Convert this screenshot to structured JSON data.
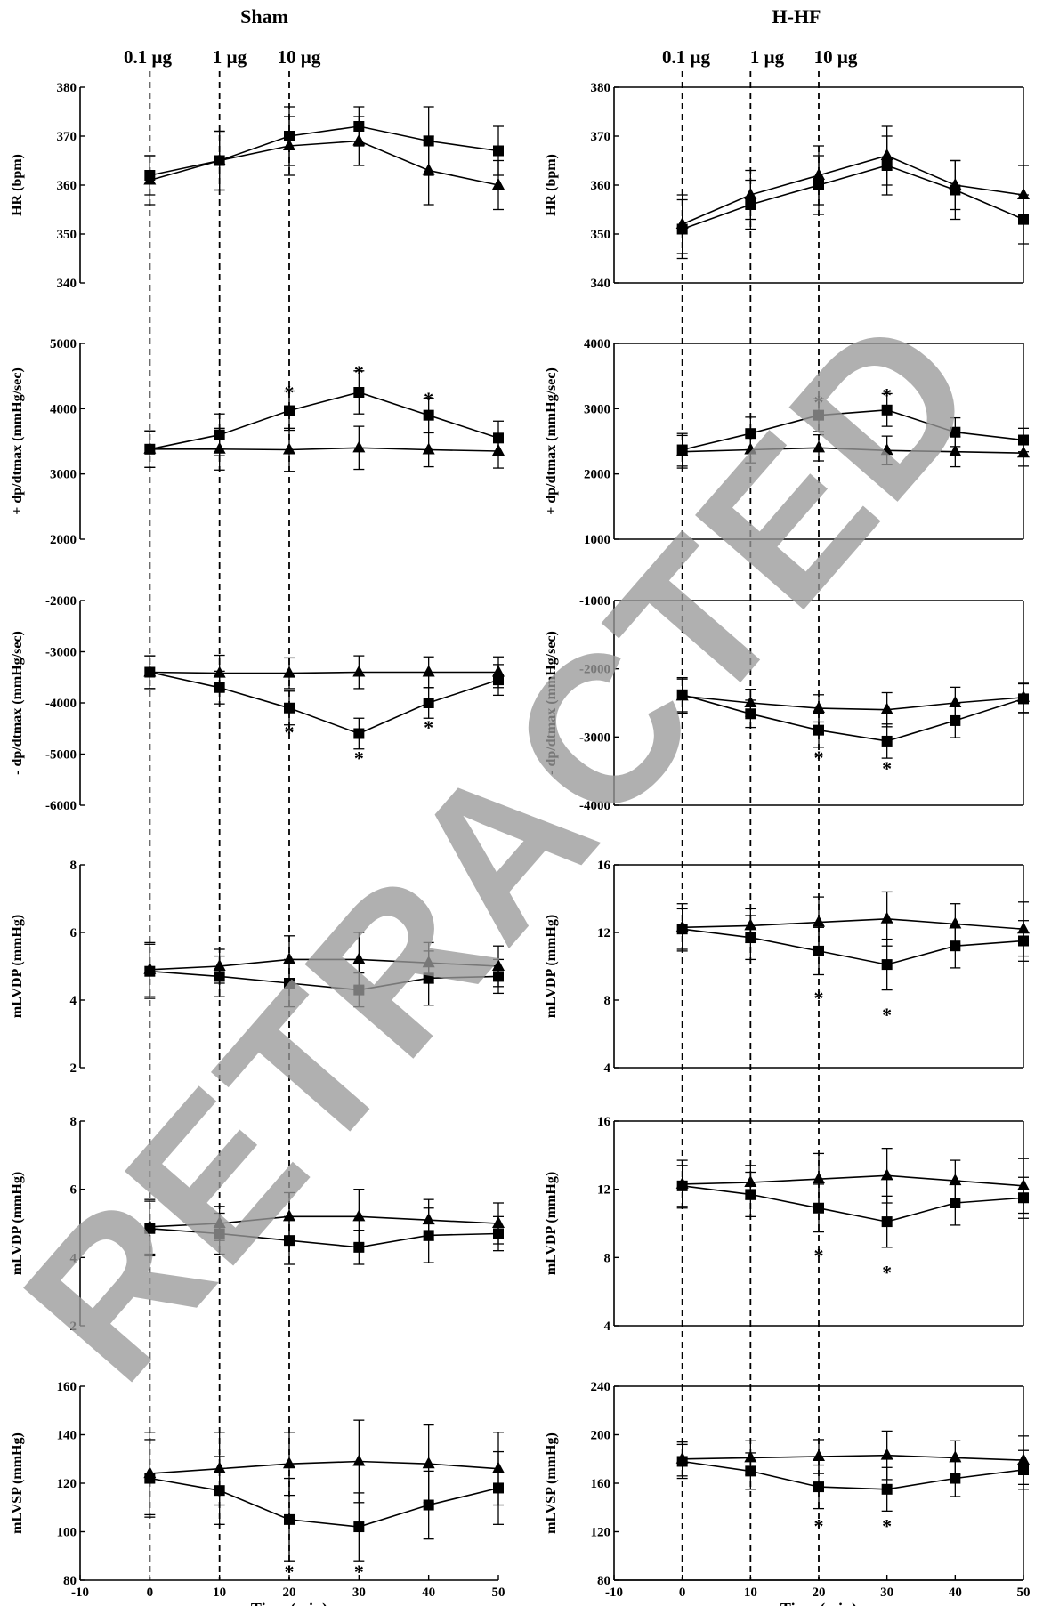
{
  "watermark": "RETRACTED",
  "columns": [
    {
      "title": "Sham",
      "doses": [
        "0.1 μg",
        "1 μg",
        "10 μg"
      ],
      "dose_times": [
        0,
        10,
        20
      ]
    },
    {
      "title": "H-HF",
      "doses": [
        "0.1 μg",
        "1 μg",
        "10 μg"
      ],
      "dose_times": [
        0,
        10,
        20
      ]
    }
  ],
  "xaxis": {
    "label": "Time (min)",
    "range": [
      -10,
      50
    ],
    "ticks": [
      -10,
      0,
      10,
      20,
      30,
      40,
      50
    ]
  },
  "colors": {
    "lines": "#000000",
    "watermark": "#9a9a9a"
  },
  "chart_data": [
    {
      "type": "line",
      "column": 0,
      "row": 0,
      "ylabel": "HR (bpm)",
      "ylim": [
        340,
        380
      ],
      "yticks": [
        340,
        350,
        360,
        370,
        380
      ],
      "x": [
        0,
        10,
        20,
        30,
        40,
        50
      ],
      "series": [
        {
          "marker": "square",
          "values": [
            362,
            365,
            370,
            372,
            369,
            367
          ],
          "err": [
            4,
            6,
            6,
            4,
            7,
            5
          ]
        },
        {
          "marker": "triangle",
          "values": [
            361,
            365,
            368,
            369,
            363,
            360
          ],
          "err": [
            5,
            6,
            6,
            5,
            7,
            5
          ]
        }
      ],
      "stars": [],
      "frame": "open"
    },
    {
      "type": "line",
      "column": 0,
      "row": 1,
      "ylabel": "+ dp/dtmax (mmHg/sec)",
      "ylim": [
        2000,
        5000
      ],
      "yticks": [
        2000,
        3000,
        4000,
        5000
      ],
      "x": [
        0,
        10,
        20,
        30,
        40,
        50
      ],
      "series": [
        {
          "marker": "square",
          "values": [
            3380,
            3600,
            3970,
            4250,
            3900,
            3550
          ],
          "err": [
            280,
            320,
            300,
            330,
            260,
            260
          ]
        },
        {
          "marker": "triangle",
          "values": [
            3380,
            3380,
            3370,
            3400,
            3370,
            3350
          ],
          "err": [
            280,
            320,
            330,
            330,
            260,
            260
          ]
        }
      ],
      "stars": [
        {
          "x": 20,
          "y": 4270
        },
        {
          "x": 30,
          "y": 4580
        },
        {
          "x": 40,
          "y": 4170
        }
      ],
      "frame": "open"
    },
    {
      "type": "line",
      "column": 0,
      "row": 2,
      "ylabel": "- dp/dtmax (mmHg/sec)",
      "ylim": [
        -6000,
        -2000
      ],
      "yticks": [
        -6000,
        -5000,
        -4000,
        -3000,
        -2000
      ],
      "x": [
        0,
        10,
        20,
        30,
        40,
        50
      ],
      "series": [
        {
          "marker": "square",
          "values": [
            -3400,
            -3700,
            -4100,
            -4600,
            -4000,
            -3550
          ],
          "err": [
            320,
            320,
            330,
            300,
            300,
            300
          ]
        },
        {
          "marker": "triangle",
          "values": [
            -3400,
            -3420,
            -3420,
            -3400,
            -3400,
            -3400
          ],
          "err": [
            320,
            350,
            300,
            320,
            300,
            300
          ]
        }
      ],
      "stars": [
        {
          "x": 20,
          "y": -4550
        },
        {
          "x": 30,
          "y": -5050
        },
        {
          "x": 40,
          "y": -4450
        }
      ],
      "frame": "open"
    },
    {
      "type": "line",
      "column": 0,
      "row": 3,
      "ylabel": "mLVDP (mmHg)",
      "ylim": [
        2,
        8
      ],
      "yticks": [
        2,
        4,
        6,
        8
      ],
      "x": [
        0,
        10,
        20,
        30,
        40,
        50
      ],
      "series": [
        {
          "marker": "square",
          "values": [
            4.85,
            4.7,
            4.5,
            4.3,
            4.65,
            4.7
          ],
          "err": [
            0.8,
            0.6,
            0.7,
            0.5,
            0.8,
            0.5
          ]
        },
        {
          "marker": "triangle",
          "values": [
            4.9,
            5.0,
            5.2,
            5.2,
            5.1,
            5.0
          ],
          "err": [
            0.8,
            0.5,
            0.7,
            0.8,
            0.6,
            0.6
          ]
        }
      ],
      "stars": [],
      "frame": "open"
    },
    {
      "type": "line",
      "column": 0,
      "row": 4,
      "ylabel": "mLVDP (mmHg)",
      "ylim": [
        2,
        8
      ],
      "yticks": [
        2,
        4,
        6,
        8
      ],
      "x": [
        0,
        10,
        20,
        30,
        40,
        50
      ],
      "series": [
        {
          "marker": "square",
          "values": [
            4.85,
            4.7,
            4.5,
            4.3,
            4.65,
            4.7
          ],
          "err": [
            0.8,
            0.6,
            0.7,
            0.5,
            0.8,
            0.5
          ]
        },
        {
          "marker": "triangle",
          "values": [
            4.9,
            5.0,
            5.2,
            5.2,
            5.1,
            5.0
          ],
          "err": [
            0.8,
            0.5,
            0.7,
            0.8,
            0.6,
            0.6
          ]
        }
      ],
      "stars": [],
      "frame": "open"
    },
    {
      "type": "line",
      "column": 0,
      "row": 5,
      "ylabel": "mLVSP (mmHg)",
      "ylim": [
        80,
        160
      ],
      "yticks": [
        80,
        100,
        120,
        140,
        160
      ],
      "x": [
        0,
        10,
        20,
        30,
        40,
        50
      ],
      "series": [
        {
          "marker": "square",
          "values": [
            122,
            117,
            105,
            102,
            111,
            118
          ],
          "err": [
            16,
            14,
            17,
            14,
            14,
            15
          ]
        },
        {
          "marker": "triangle",
          "values": [
            124,
            126,
            128,
            129,
            128,
            126
          ],
          "err": [
            17,
            15,
            13,
            17,
            16,
            15
          ]
        }
      ],
      "stars": [
        {
          "x": 20,
          "y": 84
        },
        {
          "x": 30,
          "y": 84
        }
      ],
      "frame": "open"
    },
    {
      "type": "line",
      "column": 1,
      "row": 0,
      "ylabel": "HR (bpm)",
      "ylim": [
        340,
        380
      ],
      "yticks": [
        340,
        350,
        360,
        370,
        380
      ],
      "x": [
        0,
        10,
        20,
        30,
        40,
        50
      ],
      "series": [
        {
          "marker": "square",
          "values": [
            351,
            356,
            360,
            364,
            359,
            353
          ],
          "err": [
            6,
            5,
            6,
            6,
            6,
            5
          ]
        },
        {
          "marker": "triangle",
          "values": [
            352,
            358,
            362,
            366,
            360,
            358
          ],
          "err": [
            6,
            5,
            6,
            6,
            5,
            6
          ]
        }
      ],
      "stars": [],
      "frame": "box"
    },
    {
      "type": "line",
      "column": 1,
      "row": 1,
      "ylabel": "+ dp/dtmax (mmHg/sec)",
      "ylim": [
        1000,
        4000
      ],
      "yticks": [
        1000,
        2000,
        3000,
        4000
      ],
      "x": [
        0,
        10,
        20,
        30,
        40,
        50
      ],
      "series": [
        {
          "marker": "square",
          "values": [
            2370,
            2620,
            2900,
            2980,
            2640,
            2520
          ],
          "err": [
            250,
            250,
            250,
            250,
            220,
            180
          ]
        },
        {
          "marker": "triangle",
          "values": [
            2340,
            2370,
            2400,
            2360,
            2340,
            2320
          ],
          "err": [
            250,
            200,
            200,
            220,
            230,
            200
          ]
        }
      ],
      "stars": [
        {
          "x": 20,
          "y": 3120
        },
        {
          "x": 30,
          "y": 3230
        }
      ],
      "frame": "box"
    },
    {
      "type": "line",
      "column": 1,
      "row": 2,
      "ylabel": "- dp/dtmax (mmHg/sec)",
      "ylim": [
        -4000,
        -1000
      ],
      "yticks": [
        -4000,
        -3000,
        -2000,
        -1000
      ],
      "x": [
        0,
        10,
        20,
        30,
        40,
        50
      ],
      "series": [
        {
          "marker": "square",
          "values": [
            -2380,
            -2660,
            -2900,
            -3060,
            -2760,
            -2440
          ],
          "err": [
            250,
            200,
            250,
            250,
            250,
            220
          ]
        },
        {
          "marker": "triangle",
          "values": [
            -2400,
            -2500,
            -2580,
            -2600,
            -2500,
            -2420
          ],
          "err": [
            250,
            200,
            200,
            250,
            230,
            220
          ]
        }
      ],
      "stars": [
        {
          "x": 20,
          "y": -3280
        },
        {
          "x": 30,
          "y": -3440
        }
      ],
      "frame": "box"
    },
    {
      "type": "line",
      "column": 1,
      "row": 3,
      "ylabel": "mLVDP (mmHg)",
      "ylim": [
        4,
        16
      ],
      "yticks": [
        4,
        8,
        12,
        16
      ],
      "x": [
        0,
        10,
        20,
        30,
        40,
        50
      ],
      "series": [
        {
          "marker": "square",
          "values": [
            12.2,
            11.7,
            10.9,
            10.1,
            11.2,
            11.5
          ],
          "err": [
            1.2,
            1.3,
            1.4,
            1.5,
            1.3,
            1.2
          ]
        },
        {
          "marker": "triangle",
          "values": [
            12.3,
            12.4,
            12.6,
            12.8,
            12.5,
            12.2
          ],
          "err": [
            1.4,
            1.0,
            1.5,
            1.6,
            1.2,
            1.6
          ]
        }
      ],
      "stars": [
        {
          "x": 20,
          "y": 8.2
        },
        {
          "x": 30,
          "y": 7.2
        }
      ],
      "frame": "box"
    },
    {
      "type": "line",
      "column": 1,
      "row": 4,
      "ylabel": "mLVDP (mmHg)",
      "ylim": [
        4,
        16
      ],
      "yticks": [
        4,
        8,
        12,
        16
      ],
      "x": [
        0,
        10,
        20,
        30,
        40,
        50
      ],
      "series": [
        {
          "marker": "square",
          "values": [
            12.2,
            11.7,
            10.9,
            10.1,
            11.2,
            11.5
          ],
          "err": [
            1.2,
            1.3,
            1.4,
            1.5,
            1.3,
            1.2
          ]
        },
        {
          "marker": "triangle",
          "values": [
            12.3,
            12.4,
            12.6,
            12.8,
            12.5,
            12.2
          ],
          "err": [
            1.4,
            1.0,
            1.5,
            1.6,
            1.2,
            1.6
          ]
        }
      ],
      "stars": [
        {
          "x": 20,
          "y": 8.2
        },
        {
          "x": 30,
          "y": 7.2
        }
      ],
      "frame": "box"
    },
    {
      "type": "line",
      "column": 1,
      "row": 5,
      "ylabel": "mLVSP (mmHg)",
      "ylim": [
        80,
        240
      ],
      "yticks": [
        80,
        120,
        160,
        200,
        240
      ],
      "x": [
        0,
        10,
        20,
        30,
        40,
        50
      ],
      "series": [
        {
          "marker": "square",
          "values": [
            178,
            170,
            157,
            155,
            164,
            171
          ],
          "err": [
            14,
            15,
            18,
            18,
            15,
            16
          ]
        },
        {
          "marker": "triangle",
          "values": [
            180,
            181,
            182,
            183,
            181,
            179
          ],
          "err": [
            14,
            14,
            14,
            20,
            14,
            20
          ]
        }
      ],
      "stars": [
        {
          "x": 20,
          "y": 126
        },
        {
          "x": 30,
          "y": 126
        }
      ],
      "frame": "box"
    }
  ]
}
